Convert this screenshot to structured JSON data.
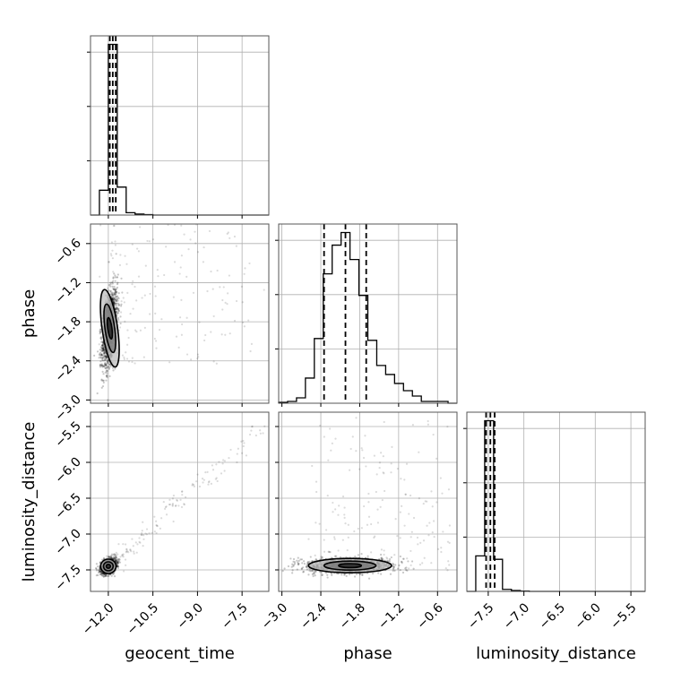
{
  "chart_data": {
    "type": "corner",
    "parameters": [
      "geocent_time",
      "phase",
      "luminosity_distance"
    ],
    "xlabels": [
      "geocent_time",
      "phase",
      "luminosity_distance"
    ],
    "ylabels": [
      "",
      "phase",
      "luminosity_distance"
    ],
    "ranges": {
      "geocent_time": [
        -12.6,
        -6.6
      ],
      "phase": [
        -3.05,
        -0.3
      ],
      "luminosity_distance": [
        -7.8,
        -5.3
      ]
    },
    "ticks": {
      "geocent_time": {
        "values": [
          -12.0,
          -10.5,
          -9.0,
          -7.5
        ],
        "labels": [
          "−12.0",
          "−10.5",
          "−9.0",
          "−7.5"
        ]
      },
      "phase": {
        "values": [
          -3.0,
          -2.4,
          -1.8,
          -1.2,
          -0.6
        ],
        "labels": [
          "−3.0",
          "−2.4",
          "−1.8",
          "−1.2",
          "−0.6"
        ]
      },
      "luminosity_distance": {
        "values": [
          -7.5,
          -7.0,
          -6.5,
          -6.0,
          -5.5
        ],
        "labels": [
          "−7.5",
          "−7.0",
          "−6.5",
          "−6.0",
          "−5.5"
        ]
      }
    },
    "quantiles": {
      "geocent_time": [
        -11.95,
        -11.85,
        -11.75
      ],
      "phase": [
        -2.35,
        -2.02,
        -1.7
      ],
      "luminosity_distance": [
        -7.53,
        -7.47,
        -7.41
      ]
    },
    "histograms": {
      "geocent_time": {
        "edges": [
          -12.6,
          -12.3,
          -12.0,
          -11.7,
          -11.4,
          -11.1,
          -10.8,
          -10.5,
          -10.2,
          -9.9,
          -9.6,
          -9.3,
          -9.0,
          -8.7,
          -8.4,
          -8.1,
          -7.8,
          -7.5,
          -7.2,
          -6.9,
          -6.6
        ],
        "counts": [
          0,
          32,
          220,
          36,
          3,
          1.2,
          0.6,
          0,
          0,
          0,
          0,
          0,
          0,
          0,
          0,
          0,
          0,
          0,
          0,
          0
        ]
      },
      "phase": {
        "edges": [
          -3.05,
          -2.9125,
          -2.775,
          -2.6375,
          -2.5,
          -2.3625,
          -2.225,
          -2.0875,
          -1.95,
          -1.8125,
          -1.675,
          -1.5375,
          -1.4,
          -1.2625,
          -1.125,
          -0.9875,
          -0.85,
          -0.7125,
          -0.575,
          -0.4375,
          -0.3
        ],
        "counts": [
          0.5,
          1,
          3,
          14,
          36,
          72,
          88,
          95,
          80,
          60,
          35,
          21,
          16,
          11,
          7,
          4,
          1,
          1,
          1,
          0
        ]
      },
      "luminosity_distance": {
        "edges": [
          -7.8,
          -7.675,
          -7.55,
          -7.425,
          -7.3,
          -7.175,
          -7.05,
          -6.925,
          -6.8,
          -6.675,
          -6.55,
          -6.425,
          -6.3,
          -6.175,
          -6.05,
          -5.925,
          -5.8,
          -5.675,
          -5.55,
          -5.425,
          -5.3
        ],
        "counts": [
          0,
          52,
          250,
          47,
          3,
          1.2,
          0.5,
          0,
          0,
          0,
          0,
          0,
          0,
          0,
          0,
          0,
          0,
          0,
          0,
          0
        ]
      }
    },
    "pairs": [
      {
        "x": "geocent_time",
        "y": "phase",
        "mean": [
          -11.95,
          -1.9
        ],
        "sigma": [
          0.13,
          0.3
        ],
        "corr": 0.45
      },
      {
        "x": "geocent_time",
        "y": "luminosity_distance",
        "mean": [
          -12.0,
          -7.45
        ],
        "sigma": [
          0.13,
          0.05
        ],
        "corr": 0.3
      },
      {
        "x": "phase",
        "y": "luminosity_distance",
        "mean": [
          -1.95,
          -7.44
        ],
        "sigma": [
          0.32,
          0.05
        ],
        "corr": 0.0
      }
    ]
  }
}
